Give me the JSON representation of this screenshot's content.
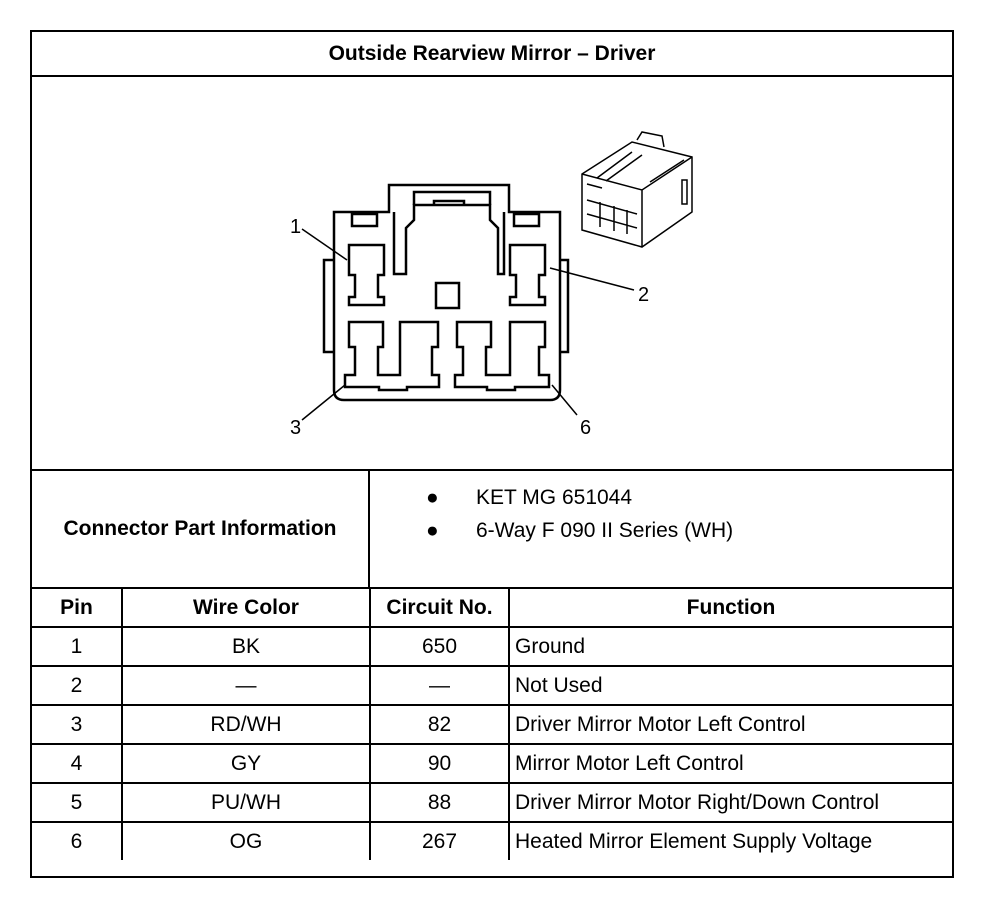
{
  "title": "Outside Rearview Mirror – Driver",
  "diagram": {
    "callouts": [
      "1",
      "2",
      "3",
      "6"
    ]
  },
  "connector_info": {
    "label": "Connector Part Information",
    "items": [
      "KET MG 651044",
      "6-Way F 090 II Series (WH)"
    ]
  },
  "table": {
    "headers": [
      "Pin",
      "Wire Color",
      "Circuit No.",
      "Function"
    ],
    "rows": [
      [
        "1",
        "BK",
        "650",
        "Ground"
      ],
      [
        "2",
        "—",
        "—",
        "Not Used"
      ],
      [
        "3",
        "RD/WH",
        "82",
        "Driver Mirror Motor Left Control"
      ],
      [
        "4",
        "GY",
        "90",
        "Mirror Motor Left Control"
      ],
      [
        "5",
        "PU/WH",
        "88",
        "Driver Mirror Motor Right/Down Control"
      ],
      [
        "6",
        "OG",
        "267",
        "Heated Mirror Element Supply Voltage"
      ]
    ]
  }
}
